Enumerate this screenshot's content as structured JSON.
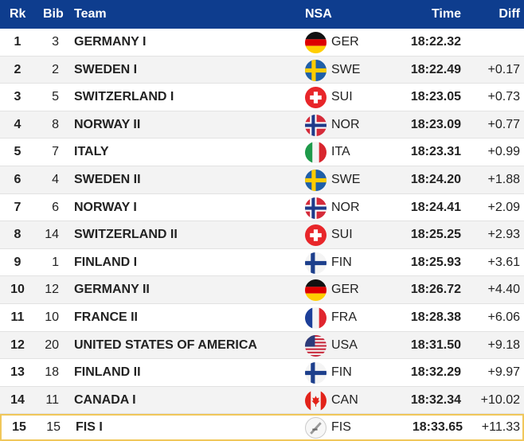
{
  "table": {
    "header": [
      "Rk",
      "Bib",
      "Team",
      "NSA",
      "Time",
      "Diff"
    ],
    "rows": [
      [
        1,
        3,
        "GERMANY I",
        "GER",
        "18:22.32"
      ],
      [
        2,
        2,
        "SWEDEN I",
        "SWE",
        "18:22.49",
        "+0.17"
      ],
      [
        3,
        5,
        "SWITZERLAND I",
        "SUI",
        "18:23.05",
        "+0.73"
      ],
      [
        4,
        8,
        "NORWAY II",
        "NOR",
        "18:23.09",
        "+0.77"
      ],
      [
        5,
        7,
        "ITALY",
        "ITA",
        "18:23.31",
        "+0.99"
      ],
      [
        6,
        4,
        "SWEDEN II",
        "SWE",
        "18:24.20",
        "+1.88"
      ],
      [
        7,
        6,
        "NORWAY I",
        "NOR",
        "18:24.41",
        "+2.09"
      ],
      [
        8,
        14,
        "SWITZERLAND II",
        "SUI",
        "18:25.25",
        "+2.93"
      ],
      [
        9,
        1,
        "FINLAND I",
        "FIN",
        "18:25.93",
        "+3.61"
      ],
      [
        10,
        12,
        "GERMANY II",
        "GER",
        "18:26.72",
        "+4.40"
      ],
      [
        11,
        10,
        "FRANCE II",
        "FRA",
        "18:28.38",
        "+6.06"
      ],
      [
        12,
        20,
        "UNITED STATES OF AMERICA",
        "USA",
        "18:31.50",
        "+9.18"
      ],
      [
        13,
        18,
        "FINLAND II",
        "FIN",
        "18:32.29",
        "+9.97"
      ],
      [
        14,
        11,
        "CANADA I",
        "CAN",
        "18:32.34",
        "+10.02"
      ],
      [
        15,
        15,
        "FIS I",
        "FIS",
        "18:33.65",
        "+11.33"
      ]
    ]
  }
}
